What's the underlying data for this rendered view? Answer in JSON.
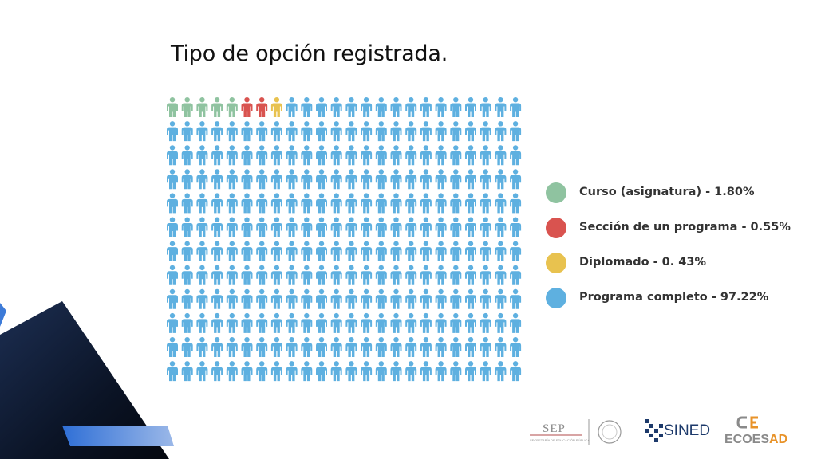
{
  "slide": {
    "title": "Tipo de opción registrada."
  },
  "pictogram": {
    "rows": 12,
    "columns": 24,
    "highlight_sequence": [
      "#8fc3a0",
      "#8fc3a0",
      "#8fc3a0",
      "#8fc3a0",
      "#8fc3a0",
      "#d9534f",
      "#d9534f",
      "#e8c24f"
    ],
    "default_color": "#5eb0e0"
  },
  "legend": {
    "items": [
      {
        "label": "Curso (asignatura) - 1.80%",
        "color": "#8fc3a0"
      },
      {
        "label": "Sección de un programa - 0.55%",
        "color": "#d9534f"
      },
      {
        "label": "Diplomado - 0. 43%",
        "color": "#e8c24f"
      },
      {
        "label": "Programa completo - 97.22%",
        "color": "#5eb0e0"
      }
    ]
  },
  "chart_data": {
    "type": "pictogram",
    "title": "Tipo de opción registrada.",
    "categories": [
      "Curso (asignatura)",
      "Sección de un programa",
      "Diplomado",
      "Programa completo"
    ],
    "values": [
      1.8,
      0.55,
      0.43,
      97.22
    ],
    "units": "%"
  },
  "footer": {
    "sep_logo": "SEP",
    "sep_subtext": "SECRETARÍA DE EDUCACIÓN PÚBLICA",
    "sined_logo": "SINED",
    "ecoesad_logo": {
      "part1": "ECOES",
      "part2": "AD"
    },
    "colors": {
      "navy": "#1d3a6b",
      "orange": "#e8932a",
      "gray": "#8a8a8a"
    }
  }
}
